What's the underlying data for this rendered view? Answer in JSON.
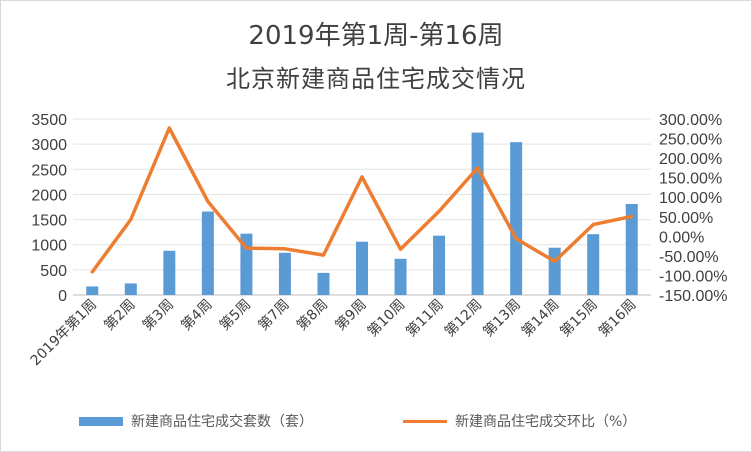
{
  "title": {
    "line1": "2019年第1周-第16周",
    "line2": "北京新建商品住宅成交情况"
  },
  "chart_data": {
    "type": "bar",
    "categories": [
      "2019年第1周",
      "第2周",
      "第3周",
      "第4周",
      "第5周",
      "第7周",
      "第8周",
      "第9周",
      "第10周",
      "第11周",
      "第12周",
      "第13周",
      "第14周",
      "第15周",
      "第16周"
    ],
    "series": [
      {
        "name": "新建商品住宅成交套数（套）",
        "type": "bar",
        "axis": "left",
        "color": "#5B9BD5",
        "values": [
          170,
          230,
          880,
          1660,
          1220,
          840,
          440,
          1060,
          720,
          1180,
          3230,
          3040,
          940,
          1210,
          1810
        ]
      },
      {
        "name": "新建商品住宅成交环比（%）",
        "type": "line",
        "axis": "right",
        "color": "#ED7D31",
        "values": [
          -91,
          43,
          277,
          89,
          -30,
          -32,
          -48,
          152,
          -33,
          64,
          175,
          -6,
          -64,
          30,
          51
        ]
      }
    ],
    "left_axis": {
      "min": 0,
      "max": 3500,
      "ticks": [
        "0",
        "500",
        "1000",
        "1500",
        "2000",
        "2500",
        "3000",
        "3500"
      ]
    },
    "right_axis": {
      "min": -150,
      "max": 300,
      "ticks": [
        "-150.00%",
        "-100.00%",
        "-50.00%",
        "0.00%",
        "50.00%",
        "100.00%",
        "150.00%",
        "200.00%",
        "250.00%",
        "300.00%"
      ]
    },
    "grid": true,
    "legend": "bottom"
  }
}
